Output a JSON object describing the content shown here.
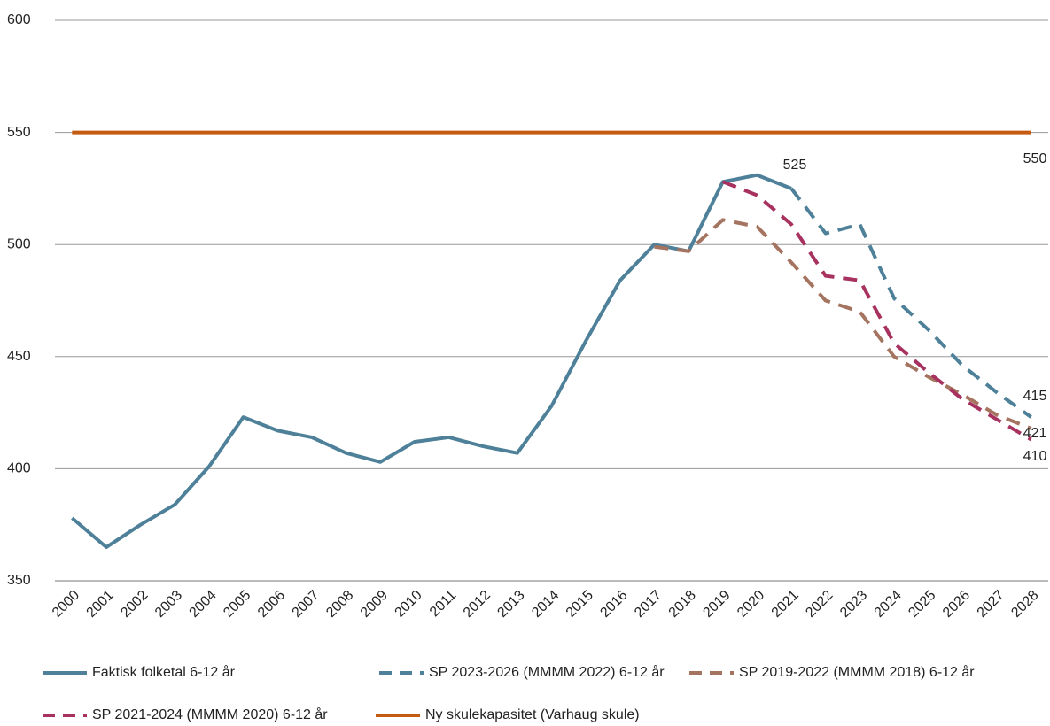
{
  "chart_data": {
    "type": "line",
    "categories": [
      "2000",
      "2001",
      "2002",
      "2003",
      "2004",
      "2005",
      "2006",
      "2007",
      "2008",
      "2009",
      "2010",
      "2011",
      "2012",
      "2013",
      "2014",
      "2015",
      "2016",
      "2017",
      "2018",
      "2019",
      "2020",
      "2021",
      "2022",
      "2023",
      "2024",
      "2025",
      "2026",
      "2027",
      "2028"
    ],
    "ylim": [
      350,
      600
    ],
    "yticks": [
      350,
      400,
      450,
      500,
      550,
      600
    ],
    "grid": true,
    "series": [
      {
        "name": "Faktisk folketal 6-12 år",
        "color": "#4e8199",
        "dashed": false,
        "values": [
          378,
          365,
          375,
          384,
          401,
          423,
          417,
          414,
          407,
          403,
          412,
          414,
          410,
          407,
          428,
          457,
          484,
          500,
          497,
          528,
          531,
          525,
          null,
          null,
          null,
          null,
          null,
          null,
          null
        ]
      },
      {
        "name": "SP 2023-2026 (MMMM 2022) 6-12 år",
        "color": "#4e8199",
        "dashed": true,
        "values": [
          null,
          null,
          null,
          null,
          null,
          null,
          null,
          null,
          null,
          null,
          null,
          null,
          null,
          null,
          null,
          null,
          null,
          null,
          null,
          null,
          null,
          525,
          505,
          509,
          476,
          462,
          446,
          434,
          423
        ]
      },
      {
        "name": "SP 2019-2022 (MMMM 2018) 6-12 år",
        "color": "#a57460",
        "dashed": true,
        "values": [
          null,
          null,
          null,
          null,
          null,
          null,
          null,
          null,
          null,
          null,
          null,
          null,
          null,
          null,
          null,
          null,
          null,
          499,
          497,
          511,
          508,
          492,
          475,
          470,
          450,
          441,
          433,
          424,
          418
        ]
      },
      {
        "name": "SP 2021-2024 (MMMM 2020) 6-12 år",
        "color": "#a8325f",
        "dashed": true,
        "values": [
          null,
          null,
          null,
          null,
          null,
          null,
          null,
          null,
          null,
          null,
          null,
          null,
          null,
          null,
          null,
          null,
          null,
          null,
          null,
          528,
          522,
          509,
          486,
          484,
          456,
          443,
          431,
          422,
          413
        ]
      },
      {
        "name": "Ny skulekapasitet (Varhaug skule)",
        "color": "#c55a11",
        "dashed": false,
        "values": [
          550,
          550,
          550,
          550,
          550,
          550,
          550,
          550,
          550,
          550,
          550,
          550,
          550,
          550,
          550,
          550,
          550,
          550,
          550,
          550,
          550,
          550,
          550,
          550,
          550,
          550,
          550,
          550,
          550
        ]
      }
    ],
    "annotations": [
      "525",
      "550",
      "415",
      "421",
      "410"
    ]
  }
}
